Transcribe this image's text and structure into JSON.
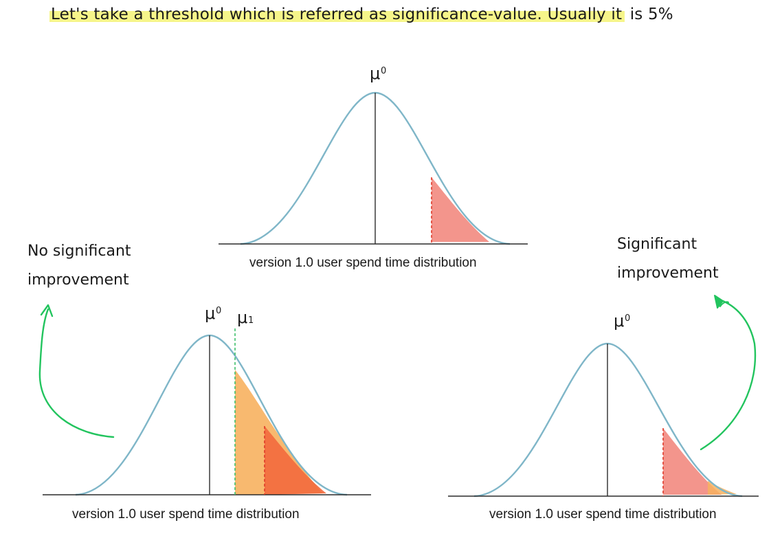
{
  "headline": {
    "text_highlighted": "Let's take a threshold which is referred as significance-value. Usually it",
    "text_rest": "is 5%"
  },
  "notes": {
    "left": [
      "No significant",
      "improvement"
    ],
    "right": [
      "Significant",
      "improvement"
    ]
  },
  "distributions": [
    {
      "id": "top",
      "caption": "version 1.0 user spend time distribution",
      "mu0_label": "μ",
      "mu0_sub": "0",
      "critical_region_color": "#f28a80"
    },
    {
      "id": "bottom-left",
      "caption": "version 1.0 user spend time distribution",
      "mu0_label": "μ",
      "mu0_sub": "0",
      "mu1_label": "μ",
      "mu1_sub": "1",
      "mu1_region_color": "#f7b15f",
      "critical_region_color": "#f26a3d"
    },
    {
      "id": "bottom-right",
      "caption": "version 1.0 user spend time distribution",
      "mu0_label": "μ",
      "mu0_sub": "0",
      "critical_region_color": "#f28a80",
      "tail_color": "#f7b15f"
    }
  ],
  "colors": {
    "curve": "#7fb6c8",
    "axis": "#2a2a2a",
    "critical_line": "#e03a2a",
    "mu1_line": "#3fbf6a",
    "arrow": "#22c45e",
    "highlight": "#f6f58a"
  },
  "icons": {
    "left_arrow": "curved-arrow-up-icon",
    "right_arrow": "curved-arrow-up-icon"
  }
}
